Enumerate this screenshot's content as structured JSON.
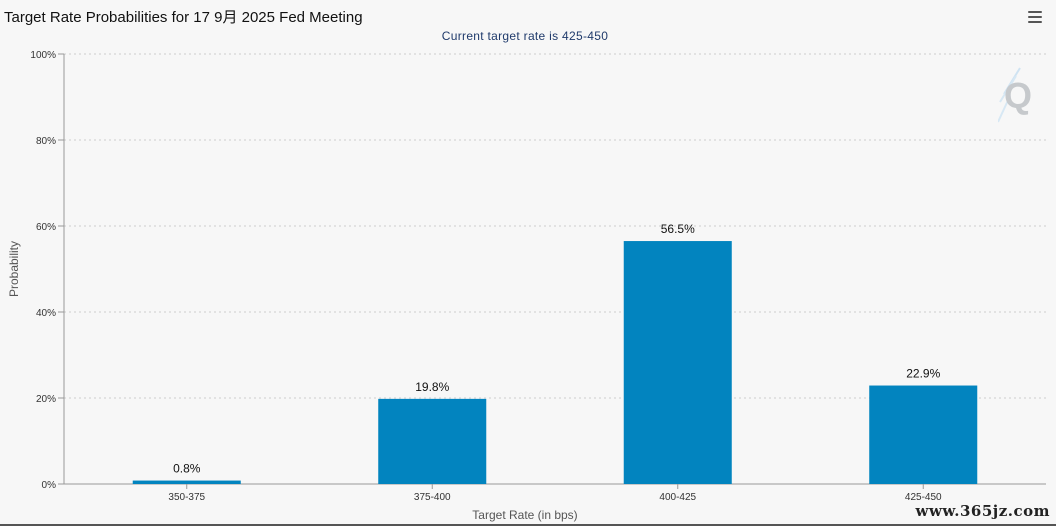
{
  "header": {
    "title": "Target Rate Probabilities for 17 9月 2025 Fed Meeting",
    "subtitle": "Current target rate is 425-450",
    "menu_icon": "hamburger-menu-icon"
  },
  "watermark": "www.365jz.com",
  "logo": "Q",
  "colors": {
    "bar": "#0284bf",
    "grid": "#cccccc",
    "axis": "#999999"
  },
  "chart_data": {
    "type": "bar",
    "title": "Target Rate Probabilities for 17 9月 2025 Fed Meeting",
    "subtitle": "Current target rate is 425-450",
    "xlabel": "Target Rate (in bps)",
    "ylabel": "Probability",
    "categories": [
      "350-375",
      "375-400",
      "400-425",
      "425-450"
    ],
    "values": [
      0.8,
      19.8,
      56.5,
      22.9
    ],
    "value_labels": [
      "0.8%",
      "19.8%",
      "56.5%",
      "22.9%"
    ],
    "ylim": [
      0,
      100
    ],
    "yticks": [
      "0%",
      "20%",
      "40%",
      "60%",
      "80%",
      "100%"
    ],
    "ytick_values": [
      0,
      20,
      40,
      60,
      80,
      100
    ],
    "grid": true,
    "legend": "none"
  }
}
